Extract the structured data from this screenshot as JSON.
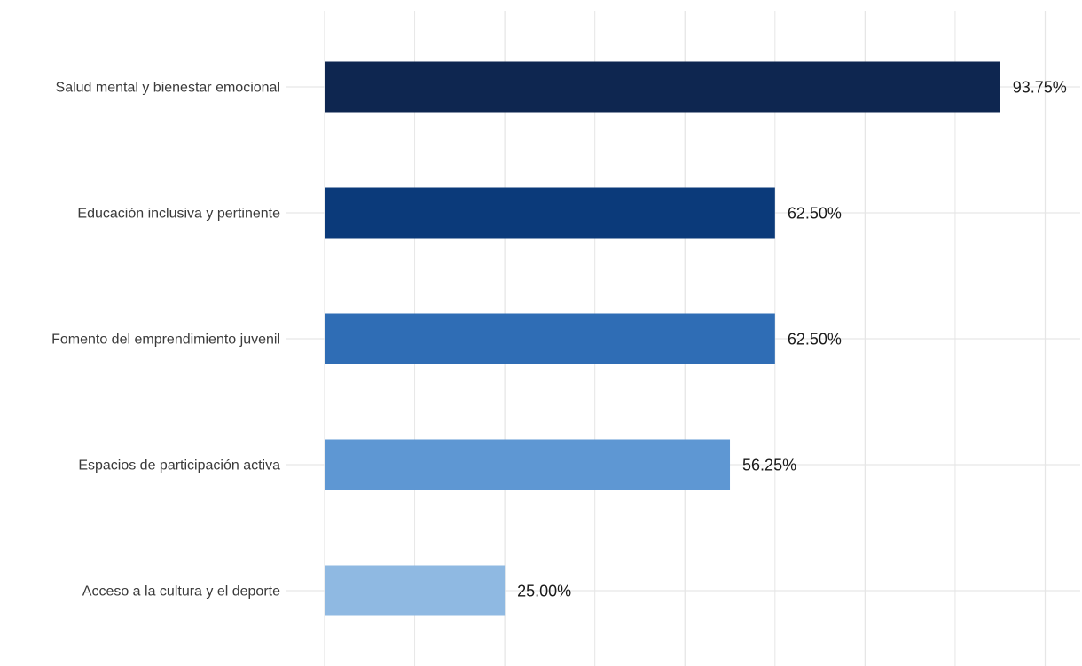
{
  "chart_data": {
    "type": "bar",
    "orientation": "horizontal",
    "categories": [
      "Salud mental y bienestar emocional",
      "Educación inclusiva y pertinente",
      "Fomento del emprendimiento juvenil",
      "Espacios de participación activa",
      "Acceso a la cultura y el deporte"
    ],
    "values": [
      93.75,
      62.5,
      62.5,
      56.25,
      25.0
    ],
    "value_labels": [
      "93.75%",
      "62.50%",
      "62.50%",
      "56.25%",
      "25.00%"
    ],
    "colors": [
      "#0e2650",
      "#0b3a7a",
      "#2f6db5",
      "#5e97d3",
      "#8fb9e2"
    ],
    "xlim": [
      0,
      100
    ],
    "grid": true,
    "grid_color": "#e6e6e6",
    "title": "",
    "xlabel": "",
    "ylabel": ""
  }
}
